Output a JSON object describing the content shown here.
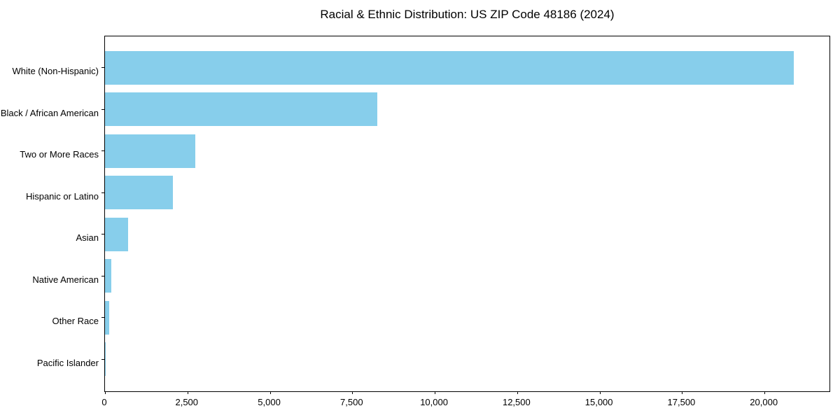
{
  "title": "Racial & Ethnic Distribution: US ZIP Code 48186 (2024)",
  "colors": {
    "bar": "#87CEEB",
    "axis": "#000000",
    "text": "#000000",
    "background": "#FFFFFF"
  },
  "chart_data": {
    "type": "bar",
    "orientation": "horizontal",
    "title": "Racial & Ethnic Distribution: US ZIP Code 48186 (2024)",
    "categories": [
      "White (Non-Hispanic)",
      "Black / African American",
      "Two or More Races",
      "Hispanic or Latino",
      "Asian",
      "Native American",
      "Other Race",
      "Pacific Islander"
    ],
    "values": [
      20890,
      8260,
      2730,
      2060,
      700,
      190,
      130,
      15
    ],
    "xlabel": "",
    "ylabel": "",
    "xlim": [
      0,
      21970
    ],
    "x_ticks": [
      0,
      2500,
      5000,
      7500,
      10000,
      12500,
      15000,
      17500,
      20000
    ],
    "x_tick_labels": [
      "0",
      "2,500",
      "5,000",
      "7,500",
      "10,000",
      "12,500",
      "15,000",
      "17,500",
      "20,000"
    ],
    "bar_color": "#87CEEB",
    "grid": false,
    "legend": false
  }
}
